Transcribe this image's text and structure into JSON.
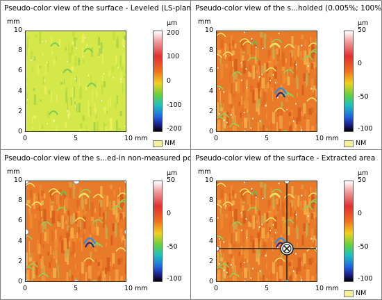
{
  "panels": [
    {
      "title": "Pseudo-color view of the surface - Leveled (LS-plane)",
      "axis_unit": "mm",
      "y_ticks": [
        "10",
        "8",
        "6",
        "4",
        "2",
        "0"
      ],
      "x_ticks": [
        "0",
        "5",
        "10 mm"
      ],
      "colorbar_unit": "µm",
      "colorbar_ticks": [
        "200",
        "100",
        "0",
        "-100",
        "-200"
      ],
      "nm_label": "NM",
      "color_scheme": "leveled"
    },
    {
      "title": "Pseudo-color view of the s...holded (0.005%; 100%)",
      "axis_unit": "mm",
      "y_ticks": [
        "10",
        "8",
        "6",
        "4",
        "2",
        "0"
      ],
      "x_ticks": [
        "0",
        "5",
        "10 mm"
      ],
      "colorbar_unit": "µm",
      "colorbar_ticks": [
        "50",
        "0",
        "-50",
        "-100"
      ],
      "nm_label": "NM",
      "color_scheme": "thresholded"
    },
    {
      "title": "Pseudo-color view of the s...ed-in non-measured points",
      "axis_unit": "mm",
      "y_ticks": [
        "10",
        "8",
        "6",
        "4",
        "2",
        "0"
      ],
      "x_ticks": [
        "0",
        "5",
        "10 mm"
      ],
      "colorbar_unit": "µm",
      "colorbar_ticks": [
        "50",
        "0",
        "-50",
        "-100"
      ],
      "nm_label": "",
      "color_scheme": "filled"
    },
    {
      "title": "Pseudo-color view of the surface - Extracted area",
      "axis_unit": "mm",
      "y_ticks": [
        "10",
        "8",
        "6",
        "4",
        "2",
        "0"
      ],
      "x_ticks": [
        "0",
        "5",
        "10 mm"
      ],
      "colorbar_unit": "µm",
      "colorbar_ticks": [
        "50",
        "0",
        "-50",
        "-100"
      ],
      "nm_label": "NM",
      "color_scheme": "extracted",
      "crosshair_icon": "crosshair-target-icon"
    }
  ],
  "colors": {
    "leveled_base": "#d4e84a",
    "surface_base": "#e87a2a",
    "nm_swatch": "#f5f09a"
  }
}
